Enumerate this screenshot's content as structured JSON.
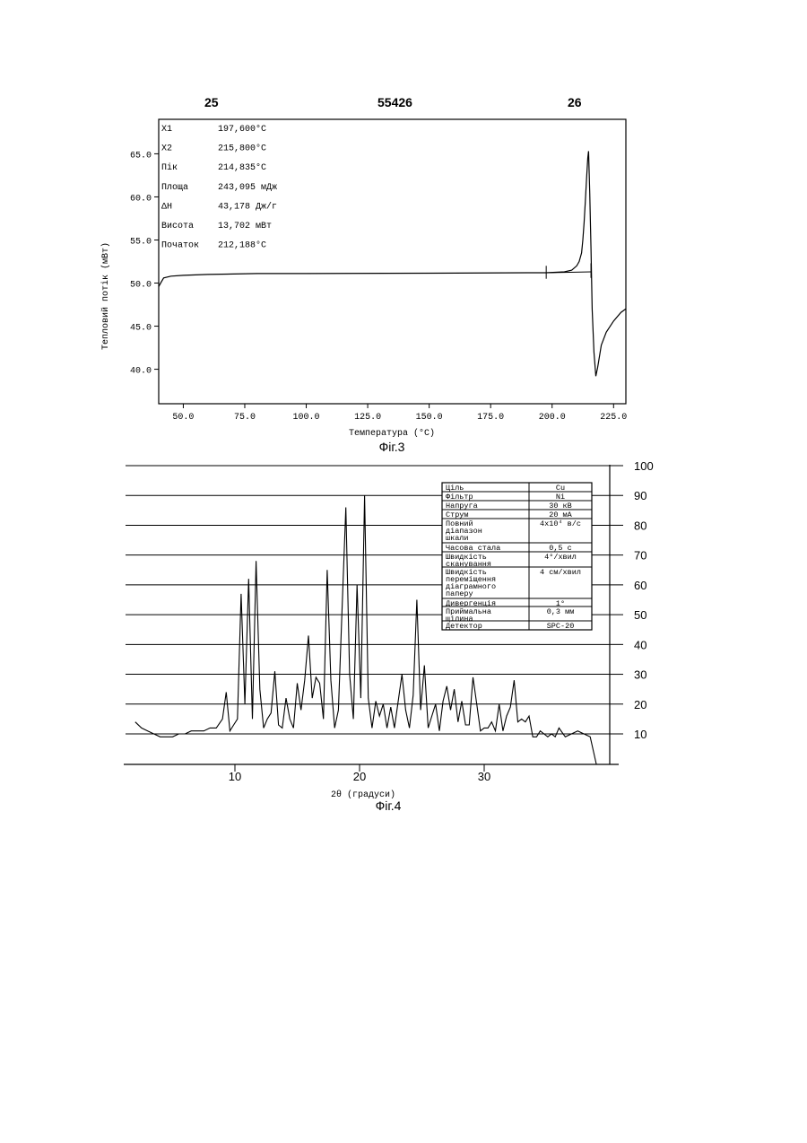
{
  "header": {
    "left_page": "25",
    "doc_number": "55426",
    "right_page": "26"
  },
  "fig3": {
    "caption": "Фіг.3",
    "xlabel": "Температура (°C)",
    "ylabel": "Тепловий потік (мВт)",
    "x_ticks": [
      "50.0",
      "75.0",
      "100.0",
      "125.0",
      "150.0",
      "175.0",
      "200.0",
      "225.0"
    ],
    "y_ticks": [
      "40.0",
      "45.0",
      "50.0",
      "55.0",
      "60.0",
      "65.0"
    ],
    "annotations": [
      {
        "label": "X1",
        "value": "197,600°C"
      },
      {
        "label": "X2",
        "value": "215,800°C"
      },
      {
        "label": "Пік",
        "value": "214,835°C"
      },
      {
        "label": "Площа",
        "value": "243,095 мДж"
      },
      {
        "label": "ΔH",
        "value": "43,178 Дж/г"
      },
      {
        "label": "Висота",
        "value": "13,702 мВт"
      },
      {
        "label": "Початок",
        "value": "212,188°C"
      }
    ]
  },
  "fig4": {
    "caption": "Фіг.4",
    "xlabel": "2θ (градуси)",
    "x_ticks": [
      "10",
      "20",
      "30"
    ],
    "y_ticks": [
      "10",
      "20",
      "30",
      "40",
      "50",
      "60",
      "70",
      "80",
      "90",
      "100"
    ],
    "params": [
      {
        "label": "Ціль",
        "value": "Cu"
      },
      {
        "label": "Фільтр",
        "value": "Ni"
      },
      {
        "label": "Напруга",
        "value": "30 кВ"
      },
      {
        "label": "Струм",
        "value": "20 мА"
      },
      {
        "label": "Повний діапазон шкали",
        "value": "4x10⁴ в/с"
      },
      {
        "label": "Часова стала",
        "value": "0,5 с"
      },
      {
        "label": "Швидкість сканування",
        "value": "4°/хвил"
      },
      {
        "label": "Швидкість переміщення діаграмного паперу",
        "value": "4 см/хвил"
      },
      {
        "label": "Дивергенція",
        "value": "1°"
      },
      {
        "label": "Приймальна щілина",
        "value": "0,3 мм"
      },
      {
        "label": "Детектор",
        "value": "SPC-20"
      }
    ]
  },
  "chart_data": [
    {
      "type": "line",
      "xlabel": "Температура (°C)",
      "ylabel": "Тепловий потік (мВт)",
      "xlim": [
        40,
        230
      ],
      "ylim": [
        36,
        69
      ],
      "grid": false,
      "x": [
        40,
        41,
        42,
        45,
        50,
        60,
        80,
        100,
        150,
        190,
        197.6,
        205,
        208,
        210,
        211,
        212,
        212.5,
        213,
        213.5,
        214,
        214.5,
        214.835,
        215.3,
        215.8,
        216.3,
        217,
        217.8,
        218.5,
        220,
        222,
        225,
        228,
        230
      ],
      "y": [
        49.6,
        50.1,
        50.6,
        50.8,
        50.9,
        51.0,
        51.1,
        51.1,
        51.15,
        51.2,
        51.2,
        51.3,
        51.5,
        52.0,
        52.5,
        53.5,
        55.0,
        57.0,
        59.5,
        62.0,
        64.5,
        65.3,
        60.5,
        54.0,
        47.0,
        42.0,
        39.2,
        40.2,
        42.8,
        44.3,
        45.6,
        46.6,
        47.0
      ]
    },
    {
      "type": "line",
      "xlabel": "2θ (градуси)",
      "ylim": [
        0,
        100
      ],
      "grid": true,
      "x_dense": [
        2.0,
        2.5,
        3.0,
        3.5,
        4.0,
        4.5,
        5.0,
        5.5,
        6.0,
        6.5,
        7.0,
        7.5,
        8.0,
        8.5,
        9.0,
        9.3,
        9.6,
        9.9,
        10.2,
        10.5,
        10.8,
        11.1,
        11.4,
        11.7,
        12.0,
        12.3,
        12.6,
        12.9,
        13.2,
        13.5,
        13.8,
        14.1,
        14.4,
        14.7,
        15.0,
        15.3,
        15.6,
        15.9,
        16.2,
        16.5,
        16.8,
        17.1,
        17.4,
        17.7,
        18.0,
        18.3,
        18.6,
        18.9,
        19.2,
        19.5,
        19.8,
        20.1,
        20.4,
        20.7,
        21.0,
        21.3,
        21.6,
        21.9,
        22.2,
        22.5,
        22.8,
        23.1,
        23.4,
        23.7,
        24.0,
        24.3,
        24.6,
        24.9,
        25.2,
        25.5,
        25.8,
        26.1,
        26.4,
        26.7,
        27.0,
        27.3,
        27.6,
        27.9,
        28.2,
        28.5,
        28.8,
        29.1,
        29.4,
        29.7,
        30.0,
        30.3,
        30.6,
        30.9,
        31.2,
        31.5,
        31.8,
        32.1,
        32.4,
        32.7,
        33.0,
        33.3,
        33.6,
        33.9,
        34.2,
        34.5,
        34.8,
        35.1,
        35.4,
        35.7,
        36.0,
        36.5,
        37.0,
        37.5,
        38.0,
        38.5,
        39.0,
        39.5,
        40.0,
        40.5
      ],
      "y_dense": [
        14,
        12,
        11,
        10,
        9,
        9,
        9,
        10,
        10,
        11,
        11,
        11,
        12,
        12,
        15,
        24,
        11,
        13,
        15,
        57,
        20,
        62,
        15,
        68,
        25,
        12,
        15,
        17,
        31,
        13,
        12,
        22,
        15,
        12,
        27,
        18,
        28,
        43,
        22,
        29,
        27,
        15,
        65,
        28,
        12,
        18,
        52,
        86,
        30,
        15,
        60,
        22,
        90,
        22,
        12,
        21,
        16,
        20,
        12,
        19,
        12,
        21,
        30,
        18,
        12,
        23,
        55,
        18,
        33,
        12,
        16,
        20,
        11,
        21,
        26,
        18,
        25,
        14,
        21,
        13,
        13,
        29,
        20,
        11,
        12,
        12,
        14,
        11,
        20,
        11,
        16,
        19,
        28,
        14,
        15,
        14,
        16,
        9,
        9,
        11,
        10,
        9,
        10,
        9,
        12,
        9,
        10,
        11,
        10,
        9,
        0,
        0,
        0,
        0
      ]
    }
  ]
}
